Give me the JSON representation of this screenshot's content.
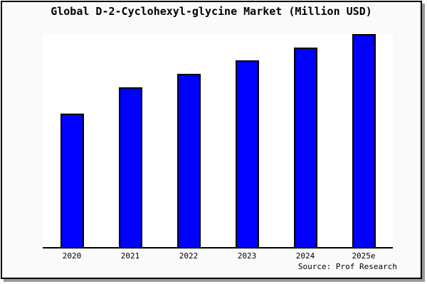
{
  "chart_data": {
    "type": "bar",
    "title": "Global D-2-Cyclohexyl-glycine Market (Million USD)",
    "categories": [
      "2020",
      "2021",
      "2022",
      "2023",
      "2024",
      "2025e"
    ],
    "values": [
      62.7,
      75.0,
      81.3,
      87.7,
      93.7,
      100.0
    ],
    "ylim": [
      0,
      101
    ],
    "xlabel": "",
    "ylabel": "",
    "grid": false,
    "legend": false,
    "y_axis_labels_visible": false,
    "data_labels_visible": false,
    "note": "No numeric y-axis or data labels are shown in the image; values are relative bar heights indexed to the 2025e bar = 100.",
    "source_note": "Source: Prof Research"
  },
  "colors": {
    "bar_fill": "#0000ff",
    "bar_border": "#000000",
    "frame_border": "#000000",
    "frame_background": "#fafafa",
    "plot_background": "#ffffff",
    "axis_line": "#000000",
    "shadow": "#999999",
    "text": "#000000",
    "page_background": "#ffffff"
  }
}
